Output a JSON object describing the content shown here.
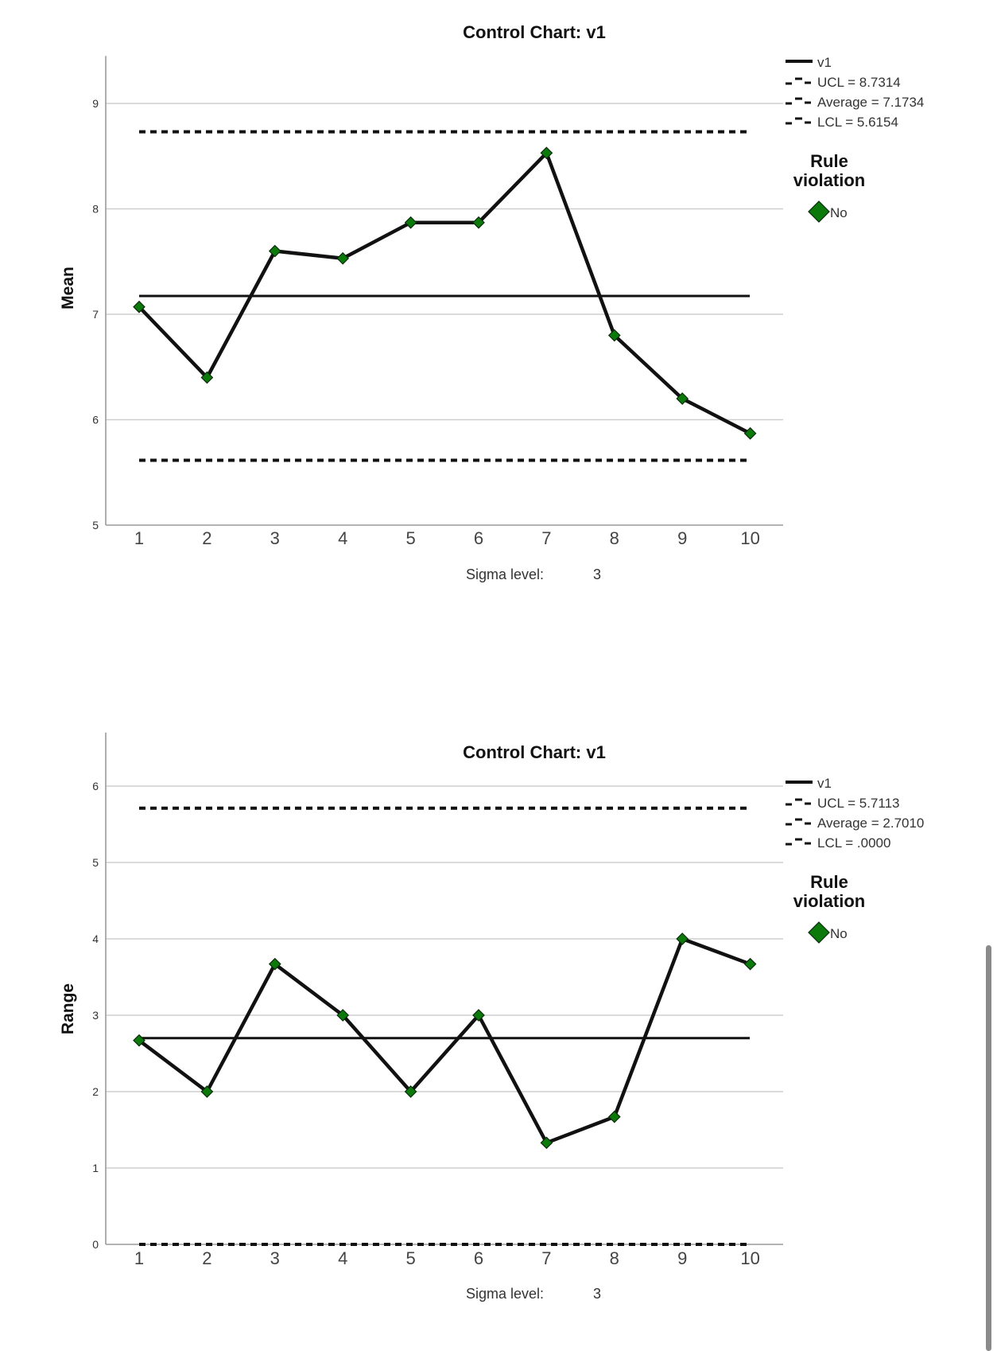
{
  "chart_data": [
    {
      "type": "line",
      "title": "Control Chart: v1",
      "ylabel": "Mean",
      "footer": {
        "label": "Sigma level:",
        "value": "3"
      },
      "x": [
        1,
        2,
        3,
        4,
        5,
        6,
        7,
        8,
        9,
        10
      ],
      "series": [
        {
          "name": "v1",
          "values": [
            7.07,
            6.4,
            7.6,
            7.53,
            7.87,
            7.87,
            8.53,
            6.8,
            6.2,
            5.87
          ]
        }
      ],
      "ucl": 8.7314,
      "average": 7.1734,
      "lcl": 5.6154,
      "legend": [
        "v1",
        "UCL = 8.7314",
        "Average = 7.1734",
        "LCL = 5.6154"
      ],
      "rule_legend": {
        "title_line1": "Rule",
        "title_line2": "violation",
        "item": "No"
      },
      "ylim": [
        5,
        9.45
      ],
      "yticks": [
        5,
        6,
        7,
        8,
        9
      ],
      "grid": true,
      "legend_position": "right",
      "line_color": "#111111",
      "marker_color": "#0b7a0b"
    },
    {
      "type": "line",
      "title": "Control Chart: v1",
      "ylabel": "Range",
      "footer": {
        "label": "Sigma level:",
        "value": "3"
      },
      "x": [
        1,
        2,
        3,
        4,
        5,
        6,
        7,
        8,
        9,
        10
      ],
      "series": [
        {
          "name": "v1",
          "values": [
            2.67,
            2.0,
            3.67,
            3.0,
            2.0,
            3.0,
            1.33,
            1.67,
            4.0,
            3.67
          ]
        }
      ],
      "ucl": 5.7113,
      "average": 2.701,
      "lcl": 0.0,
      "legend": [
        "v1",
        "UCL = 5.7113",
        "Average = 2.7010",
        "LCL = .0000"
      ],
      "rule_legend": {
        "title_line1": "Rule",
        "title_line2": "violation",
        "item": "No"
      },
      "ylim": [
        0,
        6.7
      ],
      "yticks": [
        0,
        1,
        2,
        3,
        4,
        5,
        6
      ],
      "grid": true,
      "legend_position": "right",
      "line_color": "#111111",
      "marker_color": "#0b7a0b"
    }
  ]
}
